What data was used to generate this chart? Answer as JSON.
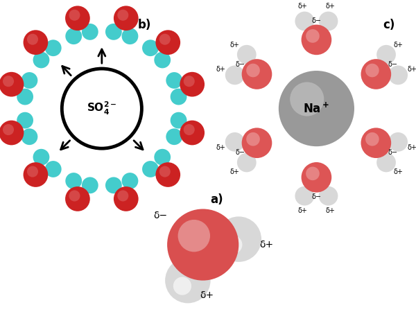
{
  "bg_color": "#ffffff",
  "o_color_a": "#d94f4f",
  "o_color_a_hi": "#f0a0a0",
  "h_color_a": "#d8d8d8",
  "o_color_b": "#cc2222",
  "h_color_b": "#44cccc",
  "o_color_c": "#dd5555",
  "o_color_c_hi": "#eeaaaa",
  "h_color_c": "#d8d8d8",
  "na_color": "#999999",
  "na_hi": "#cccccc",
  "label_a": "a)",
  "label_b": "b)",
  "label_c": "c)",
  "so4_label": "SO4²⁻",
  "na_label": "Na⁺",
  "delta_plus": "δ+",
  "delta_minus": "δ−"
}
